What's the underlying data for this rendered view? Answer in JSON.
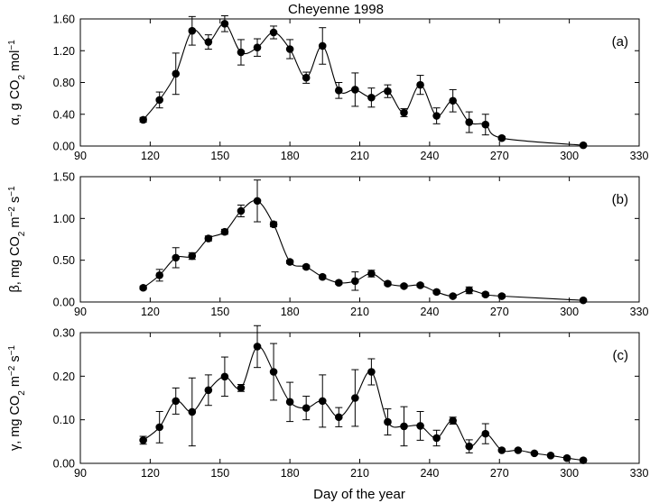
{
  "title": "Cheyenne 1998",
  "xlabel": "Day of the year",
  "chart_data": [
    {
      "type": "line",
      "panel_label": "(a)",
      "ylabel_parts": [
        "α, g CO",
        "2",
        " mol",
        "−1",
        ""
      ],
      "xlim": [
        90,
        330
      ],
      "xticks": [
        "90",
        "120",
        "150",
        "180",
        "210",
        "240",
        "270",
        "300",
        "330"
      ],
      "ylim": [
        0,
        1.6
      ],
      "yticks": [
        "0.00",
        "0.40",
        "0.80",
        "1.20",
        "1.60"
      ],
      "grid": false,
      "x": [
        117,
        124,
        131,
        138,
        145,
        152,
        159,
        166,
        173,
        180,
        187,
        194,
        201,
        208,
        215,
        222,
        229,
        236,
        243,
        250,
        257,
        264,
        271,
        306
      ],
      "y": [
        0.33,
        0.58,
        0.91,
        1.45,
        1.31,
        1.54,
        1.18,
        1.24,
        1.43,
        1.22,
        0.86,
        1.26,
        0.7,
        0.71,
        0.61,
        0.69,
        0.42,
        0.77,
        0.38,
        0.57,
        0.3,
        0.27,
        0.1,
        0.01
      ],
      "err": [
        0.03,
        0.1,
        0.26,
        0.18,
        0.09,
        0.1,
        0.16,
        0.11,
        0.08,
        0.12,
        0.07,
        0.23,
        0.1,
        0.21,
        0.12,
        0.08,
        0.05,
        0.12,
        0.1,
        0.14,
        0.13,
        0.13,
        0.02,
        0.01
      ]
    },
    {
      "type": "line",
      "panel_label": "(b)",
      "ylabel_parts": [
        "β, mg CO",
        "2",
        " m",
        "−2",
        " s",
        "−1"
      ],
      "xlim": [
        90,
        330
      ],
      "xticks": [
        "90",
        "120",
        "150",
        "180",
        "210",
        "240",
        "270",
        "300",
        "330"
      ],
      "ylim": [
        0,
        1.5
      ],
      "yticks": [
        "0.00",
        "0.50",
        "1.00",
        "1.50"
      ],
      "grid": false,
      "x": [
        117,
        124,
        131,
        138,
        145,
        152,
        159,
        166,
        173,
        180,
        187,
        194,
        201,
        208,
        215,
        222,
        229,
        236,
        243,
        250,
        257,
        264,
        271,
        306
      ],
      "y": [
        0.17,
        0.32,
        0.53,
        0.55,
        0.76,
        0.84,
        1.09,
        1.21,
        0.93,
        0.48,
        0.42,
        0.3,
        0.23,
        0.25,
        0.34,
        0.22,
        0.19,
        0.2,
        0.12,
        0.07,
        0.14,
        0.09,
        0.07,
        0.02
      ],
      "err": [
        0.02,
        0.07,
        0.12,
        0.04,
        0.03,
        0.03,
        0.07,
        0.25,
        0.03,
        0.02,
        0.02,
        0.02,
        0.02,
        0.11,
        0.04,
        0.02,
        0.02,
        0.02,
        0.02,
        0.02,
        0.04,
        0.02,
        0.02,
        0.01
      ]
    },
    {
      "type": "line",
      "panel_label": "(c)",
      "ylabel_parts": [
        "γ, mg CO",
        "2",
        " m",
        "−2",
        " s",
        "−1"
      ],
      "xlim": [
        90,
        330
      ],
      "xticks": [
        "90",
        "120",
        "150",
        "180",
        "210",
        "240",
        "270",
        "300",
        "330"
      ],
      "ylim": [
        0,
        0.3
      ],
      "yticks": [
        "0.00",
        "0.10",
        "0.20",
        "0.30"
      ],
      "grid": false,
      "x": [
        117,
        124,
        131,
        138,
        145,
        152,
        159,
        166,
        173,
        180,
        187,
        194,
        201,
        208,
        215,
        222,
        229,
        236,
        243,
        250,
        257,
        264,
        271,
        278,
        285,
        292,
        299,
        306
      ],
      "y": [
        0.053,
        0.083,
        0.143,
        0.118,
        0.168,
        0.199,
        0.173,
        0.268,
        0.21,
        0.141,
        0.127,
        0.143,
        0.106,
        0.15,
        0.21,
        0.095,
        0.085,
        0.086,
        0.058,
        0.098,
        0.039,
        0.068,
        0.03,
        0.03,
        0.023,
        0.018,
        0.012,
        0.007
      ],
      "err": [
        0.009,
        0.036,
        0.03,
        0.078,
        0.035,
        0.045,
        0.008,
        0.048,
        0.065,
        0.045,
        0.027,
        0.06,
        0.022,
        0.065,
        0.03,
        0.03,
        0.045,
        0.033,
        0.018,
        0.008,
        0.015,
        0.023,
        0.003,
        0.003,
        0.002,
        0.002,
        0.002,
        0.002
      ]
    }
  ]
}
